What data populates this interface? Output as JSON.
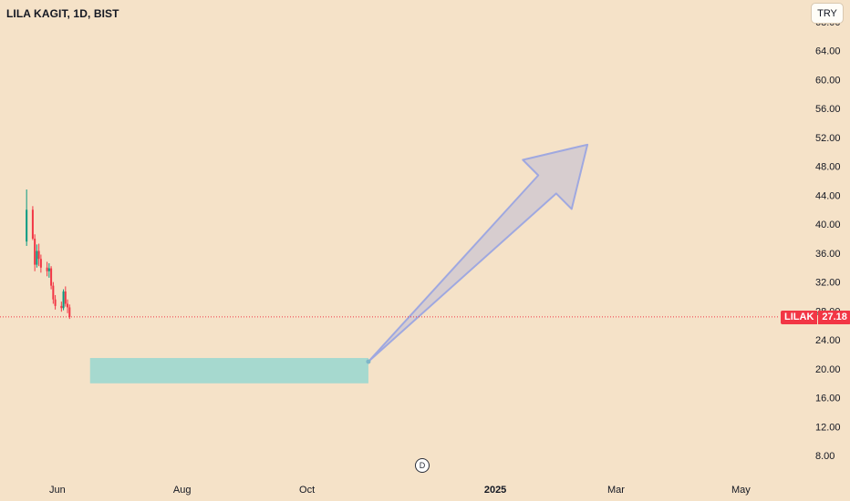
{
  "header": {
    "symbol_title": "LILA KAGIT, 1D, BIST",
    "currency_button": "TRY"
  },
  "price_tag": {
    "ticker": "LILAK",
    "value": "27.18"
  },
  "event_badge": "D",
  "colors": {
    "background": "#f5e2c8",
    "candle_up": "#089981",
    "candle_down": "#f23645",
    "price_line": "#f23645",
    "rectangle_fill": "#a6d9cf",
    "arrow_fill": "#d4cbcf",
    "arrow_stroke": "#9fa8e0"
  },
  "chart_data": {
    "type": "candlestick",
    "title": "LILA KAGIT, 1D, BIST",
    "currency": "TRY",
    "y_axis": {
      "side": "right",
      "ticks": [
        68,
        64,
        60,
        56,
        52,
        48,
        44,
        40,
        36,
        32,
        28,
        24,
        20,
        16,
        12,
        8
      ],
      "tick_labels": [
        "68.00",
        "64.00",
        "60.00",
        "56.00",
        "52.00",
        "48.00",
        "44.00",
        "40.00",
        "36.00",
        "32.00",
        "28.00",
        "24.00",
        "20.00",
        "16.00",
        "12.00",
        "8.00"
      ],
      "range": [
        4.5,
        71
      ]
    },
    "x_axis": {
      "range": [
        "2024-05-04",
        "2025-05-20"
      ],
      "ticks": [
        {
          "date": "2024-06-01",
          "label": "Jun",
          "bold": false
        },
        {
          "date": "2024-08-01",
          "label": "Aug",
          "bold": false
        },
        {
          "date": "2024-10-01",
          "label": "Oct",
          "bold": false
        },
        {
          "date": "2025-01-01",
          "label": "2025",
          "bold": true
        },
        {
          "date": "2025-03-01",
          "label": "Mar",
          "bold": false
        },
        {
          "date": "2025-05-01",
          "label": "May",
          "bold": false
        }
      ]
    },
    "last_price": 27.18,
    "candles": [
      {
        "date": "2024-05-17",
        "open": 37.6,
        "high": 44.8,
        "low": 37.0,
        "close": 42.0
      },
      {
        "date": "2024-05-20",
        "open": 42.0,
        "high": 42.5,
        "low": 37.8,
        "close": 38.0
      },
      {
        "date": "2024-05-21",
        "open": 38.0,
        "high": 38.6,
        "low": 33.5,
        "close": 34.4
      },
      {
        "date": "2024-05-22",
        "open": 34.4,
        "high": 37.2,
        "low": 34.0,
        "close": 36.3
      },
      {
        "date": "2024-05-23",
        "open": 36.3,
        "high": 37.3,
        "low": 34.2,
        "close": 35.2
      },
      {
        "date": "2024-05-24",
        "open": 35.2,
        "high": 35.8,
        "low": 33.3,
        "close": 34.0
      },
      {
        "date": "2024-05-27",
        "open": 34.0,
        "high": 34.8,
        "low": 32.8,
        "close": 33.5
      },
      {
        "date": "2024-05-28",
        "open": 33.5,
        "high": 34.6,
        "low": 32.6,
        "close": 33.9
      },
      {
        "date": "2024-05-29",
        "open": 33.9,
        "high": 34.2,
        "low": 31.0,
        "close": 31.5
      },
      {
        "date": "2024-05-30",
        "open": 31.5,
        "high": 32.0,
        "low": 29.0,
        "close": 29.6
      },
      {
        "date": "2024-05-31",
        "open": 29.6,
        "high": 30.2,
        "low": 28.2,
        "close": 28.7
      },
      {
        "date": "2024-06-03",
        "open": 28.7,
        "high": 29.3,
        "low": 27.9,
        "close": 28.4
      },
      {
        "date": "2024-06-04",
        "open": 28.4,
        "high": 31.0,
        "low": 28.1,
        "close": 30.7
      },
      {
        "date": "2024-06-05",
        "open": 30.7,
        "high": 31.4,
        "low": 28.6,
        "close": 29.0
      },
      {
        "date": "2024-06-06",
        "open": 29.0,
        "high": 29.6,
        "low": 27.7,
        "close": 28.5
      },
      {
        "date": "2024-06-07",
        "open": 28.5,
        "high": 28.9,
        "low": 26.9,
        "close": 27.18
      }
    ],
    "drawings": [
      {
        "type": "rectangle",
        "from_date": "2024-06-17",
        "to_date": "2024-10-31",
        "price_top": 21.5,
        "price_bottom": 18.0
      },
      {
        "type": "arrow",
        "from_date": "2024-10-31",
        "from_price": 21.0,
        "to_date": "2025-02-15",
        "to_price": 51.0
      }
    ]
  }
}
